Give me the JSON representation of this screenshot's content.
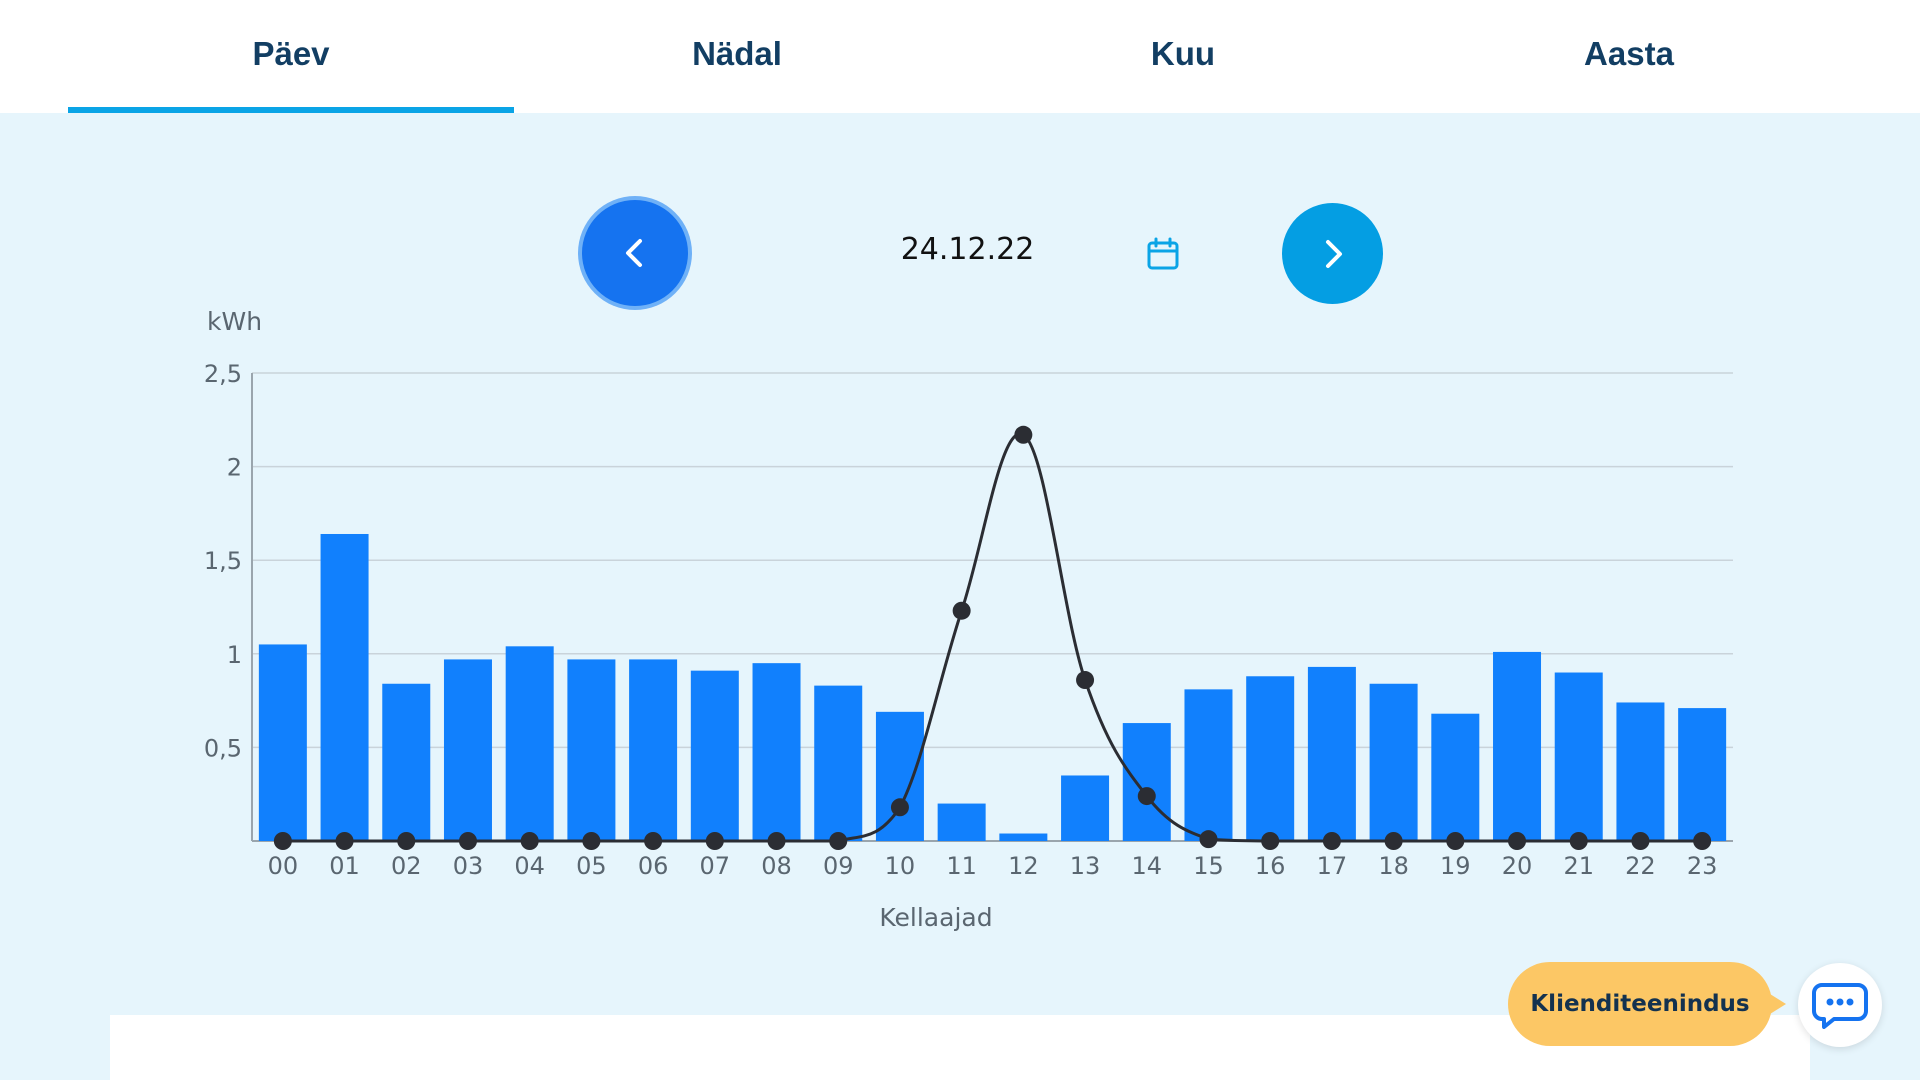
{
  "tabs": [
    {
      "label": "Päev",
      "active": true
    },
    {
      "label": "Nädal",
      "active": false
    },
    {
      "label": "Kuu",
      "active": false
    },
    {
      "label": "Aasta",
      "active": false
    }
  ],
  "date_nav": {
    "date": "24.12.22",
    "prev_icon": "chevron-left-icon",
    "next_icon": "chevron-right-icon",
    "calendar_icon": "calendar-icon"
  },
  "colors": {
    "bar": "#1180fd",
    "line": "#2b2d33",
    "tab_accent": "#0aa4e6",
    "support_bg": "#fcc765"
  },
  "chart_data": {
    "type": "bar",
    "ylabel": "kWh",
    "xlabel": "Kellaajad",
    "ylim": [
      0,
      2.5
    ],
    "yticks": [
      "0,5",
      "1",
      "1,5",
      "2",
      "2,5"
    ],
    "ytick_values": [
      0.5,
      1,
      1.5,
      2,
      2.5
    ],
    "grid": true,
    "categories": [
      "00",
      "01",
      "02",
      "03",
      "04",
      "05",
      "06",
      "07",
      "08",
      "09",
      "10",
      "11",
      "12",
      "13",
      "14",
      "15",
      "16",
      "17",
      "18",
      "19",
      "20",
      "21",
      "22",
      "23"
    ],
    "series": [
      {
        "kind": "bar",
        "values": [
          1.05,
          1.64,
          0.84,
          0.97,
          1.04,
          0.97,
          0.97,
          0.91,
          0.95,
          0.83,
          0.69,
          0.2,
          0.04,
          0.35,
          0.63,
          0.81,
          0.88,
          0.93,
          0.84,
          0.68,
          1.01,
          0.9,
          0.74,
          0.71
        ]
      },
      {
        "kind": "line",
        "values": [
          0,
          0,
          0,
          0,
          0,
          0,
          0,
          0,
          0,
          0,
          0.18,
          1.23,
          2.17,
          0.86,
          0.24,
          0.01,
          0,
          0,
          0,
          0,
          0,
          0,
          0,
          0
        ]
      }
    ]
  },
  "support": {
    "label": "Klienditeenindus",
    "chat_icon": "chat-bubble-icon"
  }
}
